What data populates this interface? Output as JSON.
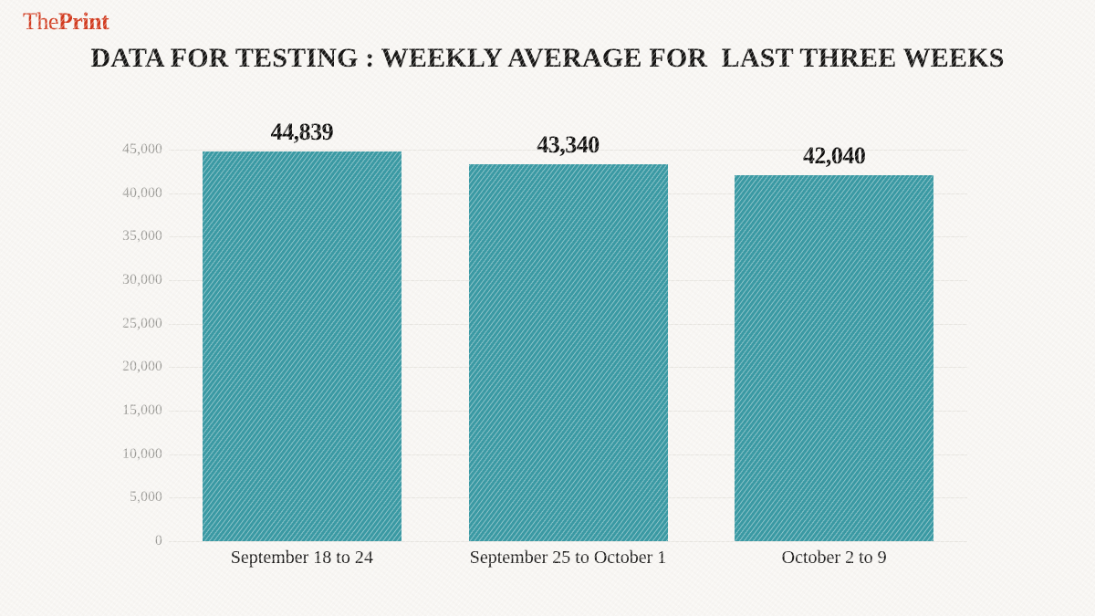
{
  "logo": {
    "the": "The",
    "print": "Print"
  },
  "chart_data": {
    "type": "bar",
    "title": "DATA FOR TESTING : WEEKLY AVERAGE FOR  LAST THREE WEEKS",
    "categories": [
      "September 18 to 24",
      "September 25 to October 1",
      "October 2 to 9"
    ],
    "values": [
      44839,
      43340,
      42040
    ],
    "value_labels": [
      "44,839",
      "43,340",
      "42,040"
    ],
    "yticks": [
      "0",
      "5,000",
      "10,000",
      "15,000",
      "20,000",
      "25,000",
      "30,000",
      "35,000",
      "40,000",
      "45,000"
    ],
    "ylim": [
      0,
      45000
    ],
    "xlabel": "",
    "ylabel": "",
    "grid": true,
    "legend": "none",
    "bar_color": "#3b9aa4"
  },
  "colors": {
    "background": "#f8f6f3",
    "logo_red": "#d23b1f",
    "bar_teal": "#3b9aa4",
    "grid_gray": "#e9e7e2",
    "tick_gray": "#9d9c98",
    "text_dark": "#151413"
  }
}
